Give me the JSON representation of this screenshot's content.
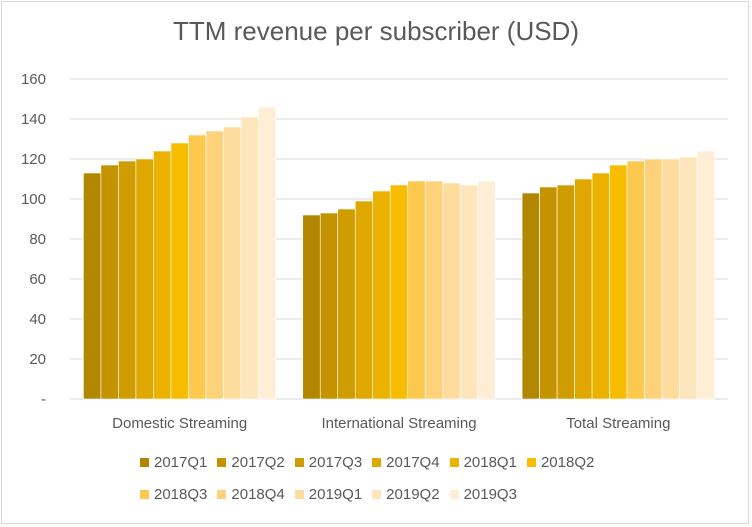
{
  "chart_data": {
    "type": "bar",
    "title": "TTM revenue per subscriber (USD)",
    "xlabel": "",
    "ylabel": "",
    "categories": [
      "Domestic Streaming",
      "International Streaming",
      "Total Streaming"
    ],
    "ylim": [
      0,
      160
    ],
    "yticks": [
      "-",
      "20",
      "40",
      "60",
      "80",
      "100",
      "120",
      "140",
      "160"
    ],
    "grid": true,
    "legend_position": "bottom",
    "series": [
      {
        "name": "2017Q1",
        "color": "#b38600",
        "values": [
          113,
          92,
          103
        ]
      },
      {
        "name": "2017Q2",
        "color": "#c49300",
        "values": [
          117,
          93,
          106
        ]
      },
      {
        "name": "2017Q3",
        "color": "#d09d00",
        "values": [
          119,
          95,
          107
        ]
      },
      {
        "name": "2017Q4",
        "color": "#dea800",
        "values": [
          120,
          99,
          110
        ]
      },
      {
        "name": "2018Q1",
        "color": "#ecb200",
        "values": [
          124,
          104,
          113
        ]
      },
      {
        "name": "2018Q2",
        "color": "#f8bd00",
        "values": [
          128,
          107,
          117
        ]
      },
      {
        "name": "2018Q3",
        "color": "#fcc84d",
        "values": [
          132,
          109,
          119
        ]
      },
      {
        "name": "2018Q4",
        "color": "#fdd27a",
        "values": [
          134,
          109,
          120
        ]
      },
      {
        "name": "2019Q1",
        "color": "#fedc9d",
        "values": [
          136,
          108,
          120
        ]
      },
      {
        "name": "2019Q2",
        "color": "#fee6bc",
        "values": [
          141,
          107,
          121
        ]
      },
      {
        "name": "2019Q3",
        "color": "#ffeed6",
        "values": [
          146,
          109,
          124
        ]
      }
    ]
  }
}
